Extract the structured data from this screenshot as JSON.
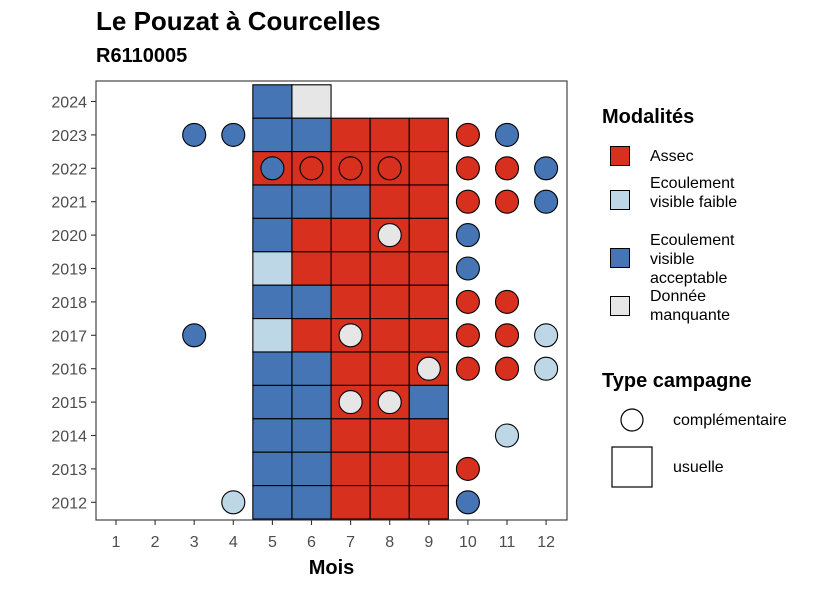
{
  "title": "Le Pouzat à Courcelles",
  "subtitle": "R6110005",
  "chart_data": {
    "type": "heatmap",
    "xlabel": "Mois",
    "ylabel": "",
    "x_ticks": [
      "1",
      "2",
      "3",
      "4",
      "5",
      "6",
      "7",
      "8",
      "9",
      "10",
      "11",
      "12"
    ],
    "y_ticks": [
      "2012",
      "2013",
      "2014",
      "2015",
      "2016",
      "2017",
      "2018",
      "2019",
      "2020",
      "2021",
      "2022",
      "2023",
      "2024"
    ],
    "grid": false,
    "legend_position": "right",
    "colors": {
      "Assec": "#d7301f",
      "Ecoulement visible faible": "#bdd7e7",
      "Ecoulement visible acceptable": "#4575b4",
      "Donnée manquante": "#e6e6e6"
    },
    "legend_modalites": {
      "title": "Modalités",
      "items": [
        {
          "key": "Assec",
          "label": "Assec"
        },
        {
          "key": "Ecoulement visible faible",
          "label": "Ecoulement visible faible"
        },
        {
          "key": "Ecoulement visible acceptable",
          "label": "Ecoulement visible acceptable"
        },
        {
          "key": "Donnée manquante",
          "label": "Donnée manquante"
        }
      ]
    },
    "legend_campagne": {
      "title": "Type campagne",
      "items": [
        {
          "shape": "circle",
          "label": "complémentaire"
        },
        {
          "shape": "square",
          "label": "usuelle"
        }
      ]
    },
    "usuelle": [
      {
        "year": 2024,
        "month": 5,
        "value": "Ecoulement visible acceptable"
      },
      {
        "year": 2024,
        "month": 6,
        "value": "Donnée manquante"
      },
      {
        "year": 2023,
        "month": 5,
        "value": "Ecoulement visible acceptable"
      },
      {
        "year": 2023,
        "month": 6,
        "value": "Ecoulement visible acceptable"
      },
      {
        "year": 2023,
        "month": 7,
        "value": "Assec"
      },
      {
        "year": 2023,
        "month": 8,
        "value": "Assec"
      },
      {
        "year": 2023,
        "month": 9,
        "value": "Assec"
      },
      {
        "year": 2022,
        "month": 5,
        "value": "Assec"
      },
      {
        "year": 2022,
        "month": 6,
        "value": "Assec"
      },
      {
        "year": 2022,
        "month": 7,
        "value": "Assec"
      },
      {
        "year": 2022,
        "month": 8,
        "value": "Assec"
      },
      {
        "year": 2022,
        "month": 9,
        "value": "Assec"
      },
      {
        "year": 2021,
        "month": 5,
        "value": "Ecoulement visible acceptable"
      },
      {
        "year": 2021,
        "month": 6,
        "value": "Ecoulement visible acceptable"
      },
      {
        "year": 2021,
        "month": 7,
        "value": "Ecoulement visible acceptable"
      },
      {
        "year": 2021,
        "month": 8,
        "value": "Assec"
      },
      {
        "year": 2021,
        "month": 9,
        "value": "Assec"
      },
      {
        "year": 2020,
        "month": 5,
        "value": "Ecoulement visible acceptable"
      },
      {
        "year": 2020,
        "month": 6,
        "value": "Assec"
      },
      {
        "year": 2020,
        "month": 7,
        "value": "Assec"
      },
      {
        "year": 2020,
        "month": 8,
        "value": "Assec"
      },
      {
        "year": 2020,
        "month": 9,
        "value": "Assec"
      },
      {
        "year": 2019,
        "month": 5,
        "value": "Ecoulement visible faible"
      },
      {
        "year": 2019,
        "month": 6,
        "value": "Assec"
      },
      {
        "year": 2019,
        "month": 7,
        "value": "Assec"
      },
      {
        "year": 2019,
        "month": 8,
        "value": "Assec"
      },
      {
        "year": 2019,
        "month": 9,
        "value": "Assec"
      },
      {
        "year": 2018,
        "month": 5,
        "value": "Ecoulement visible acceptable"
      },
      {
        "year": 2018,
        "month": 6,
        "value": "Ecoulement visible acceptable"
      },
      {
        "year": 2018,
        "month": 7,
        "value": "Assec"
      },
      {
        "year": 2018,
        "month": 8,
        "value": "Assec"
      },
      {
        "year": 2018,
        "month": 9,
        "value": "Assec"
      },
      {
        "year": 2017,
        "month": 5,
        "value": "Ecoulement visible faible"
      },
      {
        "year": 2017,
        "month": 6,
        "value": "Assec"
      },
      {
        "year": 2017,
        "month": 7,
        "value": "Assec"
      },
      {
        "year": 2017,
        "month": 8,
        "value": "Assec"
      },
      {
        "year": 2017,
        "month": 9,
        "value": "Assec"
      },
      {
        "year": 2016,
        "month": 5,
        "value": "Ecoulement visible acceptable"
      },
      {
        "year": 2016,
        "month": 6,
        "value": "Ecoulement visible acceptable"
      },
      {
        "year": 2016,
        "month": 7,
        "value": "Assec"
      },
      {
        "year": 2016,
        "month": 8,
        "value": "Assec"
      },
      {
        "year": 2016,
        "month": 9,
        "value": "Assec"
      },
      {
        "year": 2015,
        "month": 5,
        "value": "Ecoulement visible acceptable"
      },
      {
        "year": 2015,
        "month": 6,
        "value": "Ecoulement visible acceptable"
      },
      {
        "year": 2015,
        "month": 7,
        "value": "Assec"
      },
      {
        "year": 2015,
        "month": 8,
        "value": "Assec"
      },
      {
        "year": 2015,
        "month": 9,
        "value": "Ecoulement visible acceptable"
      },
      {
        "year": 2014,
        "month": 5,
        "value": "Ecoulement visible acceptable"
      },
      {
        "year": 2014,
        "month": 6,
        "value": "Ecoulement visible acceptable"
      },
      {
        "year": 2014,
        "month": 7,
        "value": "Assec"
      },
      {
        "year": 2014,
        "month": 8,
        "value": "Assec"
      },
      {
        "year": 2014,
        "month": 9,
        "value": "Assec"
      },
      {
        "year": 2013,
        "month": 5,
        "value": "Ecoulement visible acceptable"
      },
      {
        "year": 2013,
        "month": 6,
        "value": "Ecoulement visible acceptable"
      },
      {
        "year": 2013,
        "month": 7,
        "value": "Assec"
      },
      {
        "year": 2013,
        "month": 8,
        "value": "Assec"
      },
      {
        "year": 2013,
        "month": 9,
        "value": "Assec"
      },
      {
        "year": 2012,
        "month": 5,
        "value": "Ecoulement visible acceptable"
      },
      {
        "year": 2012,
        "month": 6,
        "value": "Ecoulement visible acceptable"
      },
      {
        "year": 2012,
        "month": 7,
        "value": "Assec"
      },
      {
        "year": 2012,
        "month": 8,
        "value": "Assec"
      },
      {
        "year": 2012,
        "month": 9,
        "value": "Assec"
      }
    ],
    "complementaire": [
      {
        "year": 2023,
        "month": 3,
        "value": "Ecoulement visible acceptable"
      },
      {
        "year": 2023,
        "month": 4,
        "value": "Ecoulement visible acceptable"
      },
      {
        "year": 2023,
        "month": 10,
        "value": "Assec"
      },
      {
        "year": 2023,
        "month": 11,
        "value": "Ecoulement visible acceptable"
      },
      {
        "year": 2022,
        "month": 5,
        "value": "Ecoulement visible acceptable"
      },
      {
        "year": 2022,
        "month": 6,
        "value": "Assec"
      },
      {
        "year": 2022,
        "month": 7,
        "value": "Assec"
      },
      {
        "year": 2022,
        "month": 8,
        "value": "Assec"
      },
      {
        "year": 2022,
        "month": 10,
        "value": "Assec"
      },
      {
        "year": 2022,
        "month": 11,
        "value": "Assec"
      },
      {
        "year": 2022,
        "month": 12,
        "value": "Ecoulement visible acceptable"
      },
      {
        "year": 2021,
        "month": 10,
        "value": "Assec"
      },
      {
        "year": 2021,
        "month": 11,
        "value": "Assec"
      },
      {
        "year": 2021,
        "month": 12,
        "value": "Ecoulement visible acceptable"
      },
      {
        "year": 2020,
        "month": 8,
        "value": "Donnée manquante"
      },
      {
        "year": 2020,
        "month": 10,
        "value": "Ecoulement visible acceptable"
      },
      {
        "year": 2019,
        "month": 10,
        "value": "Ecoulement visible acceptable"
      },
      {
        "year": 2018,
        "month": 10,
        "value": "Assec"
      },
      {
        "year": 2018,
        "month": 11,
        "value": "Assec"
      },
      {
        "year": 2017,
        "month": 3,
        "value": "Ecoulement visible acceptable"
      },
      {
        "year": 2017,
        "month": 7,
        "value": "Donnée manquante"
      },
      {
        "year": 2017,
        "month": 10,
        "value": "Assec"
      },
      {
        "year": 2017,
        "month": 11,
        "value": "Assec"
      },
      {
        "year": 2017,
        "month": 12,
        "value": "Ecoulement visible faible"
      },
      {
        "year": 2016,
        "month": 9,
        "value": "Donnée manquante"
      },
      {
        "year": 2016,
        "month": 10,
        "value": "Assec"
      },
      {
        "year": 2016,
        "month": 11,
        "value": "Assec"
      },
      {
        "year": 2016,
        "month": 12,
        "value": "Ecoulement visible faible"
      },
      {
        "year": 2015,
        "month": 7,
        "value": "Donnée manquante"
      },
      {
        "year": 2015,
        "month": 8,
        "value": "Donnée manquante"
      },
      {
        "year": 2014,
        "month": 11,
        "value": "Ecoulement visible faible"
      },
      {
        "year": 2013,
        "month": 10,
        "value": "Assec"
      },
      {
        "year": 2012,
        "month": 4,
        "value": "Ecoulement visible faible"
      },
      {
        "year": 2012,
        "month": 10,
        "value": "Ecoulement visible acceptable"
      }
    ]
  }
}
